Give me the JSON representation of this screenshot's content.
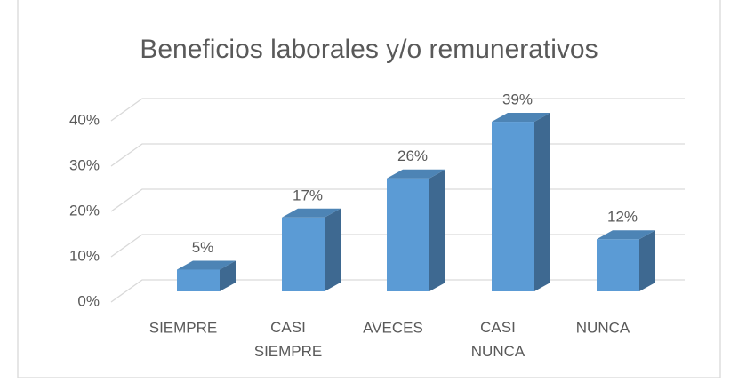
{
  "chart_data": {
    "type": "bar3d",
    "title": "Beneficios laborales y/o remunerativos",
    "categories": [
      "SIEMPRE",
      "CASI SIEMPRE",
      "AVECES",
      "CASI NUNCA",
      "NUNCA"
    ],
    "values": [
      5,
      17,
      26,
      39,
      12
    ],
    "value_labels": [
      "5%",
      "17%",
      "26%",
      "39%",
      "12%"
    ],
    "color": "#5b9bd5",
    "ylim": [
      0,
      40
    ],
    "yticks": [
      {
        "value": 0,
        "label": "0%"
      },
      {
        "value": 10,
        "label": "10%"
      },
      {
        "value": 20,
        "label": "20%"
      },
      {
        "value": 30,
        "label": "30%"
      },
      {
        "value": 40,
        "label": "40%"
      }
    ],
    "grid": true
  }
}
